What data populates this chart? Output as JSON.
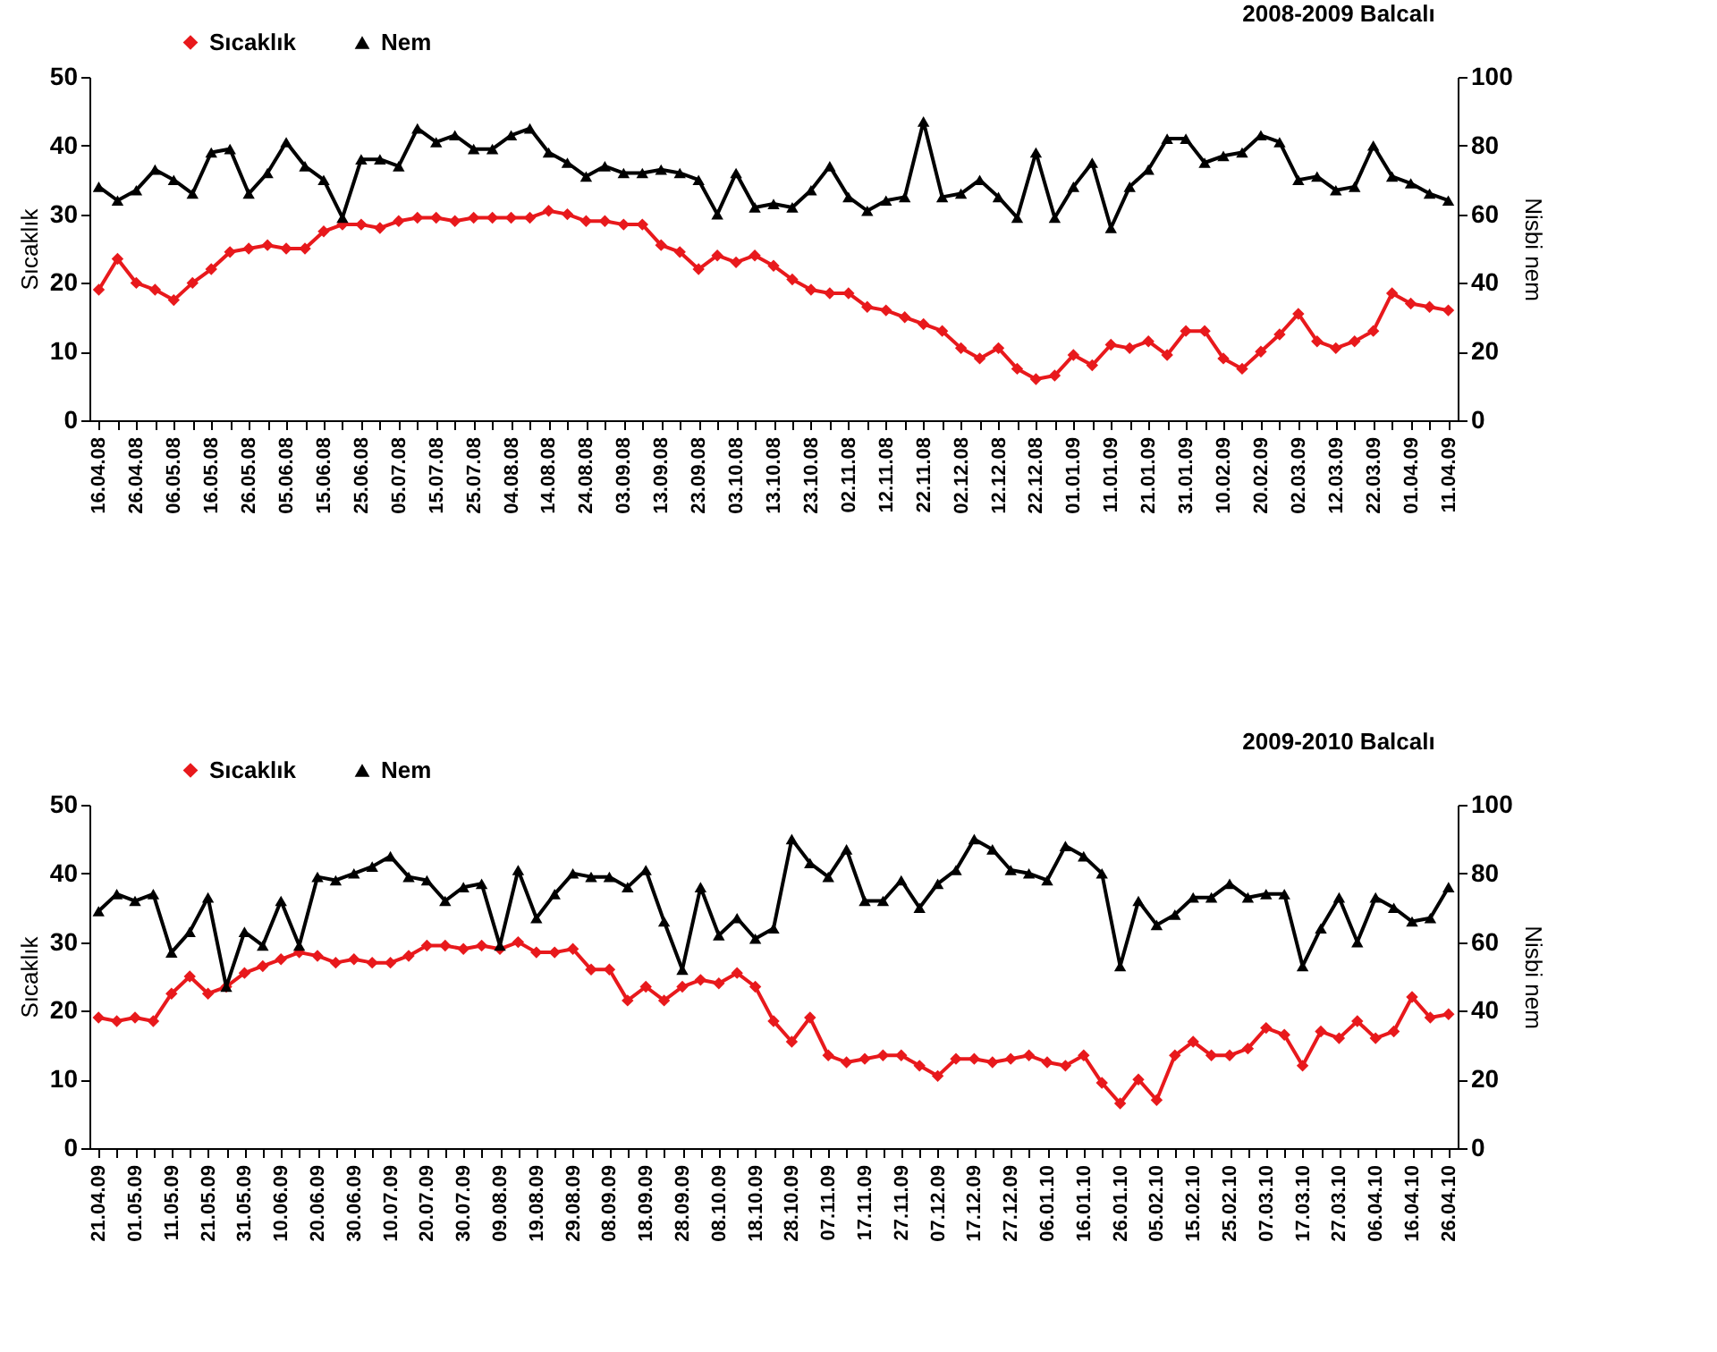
{
  "chart_data": [
    {
      "type": "line",
      "title": "2008-2009 Balcalı",
      "ylabel": "Sıcaklık",
      "y2label": "Nisbi nem",
      "legend": "top left",
      "grid": false,
      "categories": [
        "16.04.08",
        null,
        "26.04.08",
        null,
        "06.05.08",
        null,
        "16.05.08",
        null,
        "26.05.08",
        null,
        "05.06.08",
        null,
        "15.06.08",
        null,
        "25.06.08",
        null,
        "05.07.08",
        null,
        "15.07.08",
        null,
        "25.07.08",
        null,
        "04.08.08",
        null,
        "14.08.08",
        null,
        "24.08.08",
        null,
        "03.09.08",
        null,
        "13.09.08",
        null,
        "23.09.08",
        null,
        "03.10.08",
        null,
        "13.10.08",
        null,
        "23.10.08",
        null,
        "02.11.08",
        null,
        "12.11.08",
        null,
        "22.11.08",
        null,
        "02.12.08",
        null,
        "12.12.08",
        null,
        "22.12.08",
        null,
        "01.01.09",
        null,
        "11.01.09",
        null,
        "21.01.09",
        null,
        "31.01.09",
        null,
        "10.02.09",
        null,
        "20.02.09",
        null,
        "02.03.09",
        null,
        "12.03.09",
        null,
        "22.03.09",
        null,
        "01.04.09",
        null,
        "11.04.09"
      ],
      "ylim": [
        0,
        50
      ],
      "yticks": [
        0,
        10,
        20,
        30,
        40,
        50
      ],
      "y2lim": [
        0,
        100
      ],
      "y2ticks": [
        0,
        20,
        40,
        60,
        80,
        100
      ],
      "series": [
        {
          "name": "Sıcaklık",
          "color": "#e8191c",
          "marker": "diamond",
          "values": [
            19,
            23.5,
            20,
            19,
            17.5,
            20,
            22,
            24.5,
            25,
            25.5,
            25,
            25,
            27.5,
            28.5,
            28.5,
            28,
            29,
            29.5,
            29.5,
            29,
            29.5,
            29.5,
            29.5,
            29.5,
            30.5,
            30,
            29,
            29,
            28.5,
            28.5,
            25.5,
            24.5,
            22,
            24,
            23,
            24,
            22.5,
            20.5,
            19,
            18.5,
            18.5,
            16.5,
            16,
            15,
            14,
            13,
            10.5,
            9,
            10.5,
            7.5,
            6,
            6.5,
            9.5,
            8,
            11,
            10.5,
            11.5,
            9.5,
            13,
            13,
            9,
            7.5,
            10,
            12.5,
            15.5,
            11.5,
            10.5,
            11.5,
            13,
            18.5,
            17,
            16.5,
            16
          ]
        },
        {
          "name": "Nem",
          "color": "#000000",
          "marker": "triangle",
          "axis": "y2",
          "values": [
            68,
            64,
            67,
            73,
            70,
            66,
            78,
            79,
            66,
            72,
            81,
            74,
            70,
            59,
            76,
            76,
            74,
            85,
            81,
            83,
            79,
            79,
            83,
            85,
            78,
            75,
            71,
            74,
            72,
            72,
            73,
            72,
            70,
            60,
            72,
            62,
            63,
            62,
            67,
            74,
            65,
            61,
            64,
            65,
            87,
            65,
            66,
            70,
            65,
            59,
            78,
            59,
            68,
            75,
            56,
            68,
            73,
            82,
            82,
            75,
            77,
            78,
            83,
            81,
            70,
            71,
            67,
            68,
            80,
            71,
            69,
            66,
            64
          ]
        }
      ]
    },
    {
      "type": "line",
      "title": "2009-2010 Balcalı",
      "ylabel": "Sıcaklık",
      "y2label": "Nisbi nem",
      "legend": "top left",
      "grid": false,
      "categories": [
        "21.04.09",
        null,
        "01.05.09",
        null,
        "11.05.09",
        null,
        "21.05.09",
        null,
        "31.05.09",
        null,
        "10.06.09",
        null,
        "20.06.09",
        null,
        "30.06.09",
        null,
        "10.07.09",
        null,
        "20.07.09",
        null,
        "30.07.09",
        null,
        "09.08.09",
        null,
        "19.08.09",
        null,
        "29.08.09",
        null,
        "08.09.09",
        null,
        "18.09.09",
        null,
        "28.09.09",
        null,
        "08.10.09",
        null,
        "18.10.09",
        null,
        "28.10.09",
        null,
        "07.11.09",
        null,
        "17.11.09",
        null,
        "27.11.09",
        null,
        "07.12.09",
        null,
        "17.12.09",
        null,
        "27.12.09",
        null,
        "06.01.10",
        null,
        "16.01.10",
        null,
        "26.01.10",
        null,
        "05.02.10",
        null,
        "15.02.10",
        null,
        "25.02.10",
        null,
        "07.03.10",
        null,
        "17.03.10",
        null,
        "27.03.10",
        null,
        "06.04.10",
        null,
        "16.04.10",
        null,
        "26.04.10"
      ],
      "ylim": [
        0,
        50
      ],
      "yticks": [
        0,
        10,
        20,
        30,
        40,
        50
      ],
      "y2lim": [
        0,
        100
      ],
      "y2ticks": [
        0,
        20,
        40,
        60,
        80,
        100
      ],
      "series": [
        {
          "name": "Sıcaklık",
          "color": "#e8191c",
          "marker": "diamond",
          "values": [
            19,
            18.5,
            19,
            18.5,
            22.5,
            25,
            22.5,
            23.5,
            25.5,
            26.5,
            27.5,
            28.5,
            28,
            27,
            27.5,
            27,
            27,
            28,
            29.5,
            29.5,
            29,
            29.5,
            29,
            30,
            28.5,
            28.5,
            29,
            26,
            26,
            21.5,
            23.5,
            21.5,
            23.5,
            24.5,
            24,
            25.5,
            23.5,
            18.5,
            15.5,
            19,
            13.5,
            12.5,
            13,
            13.5,
            13.5,
            12,
            10.5,
            13,
            13,
            12.5,
            13,
            13.5,
            12.5,
            12,
            13.5,
            9.5,
            6.5,
            10,
            7,
            13.5,
            15.5,
            13.5,
            13.5,
            14.5,
            17.5,
            16.5,
            12,
            17,
            16,
            18.5,
            16,
            17,
            22,
            19,
            19.5
          ]
        },
        {
          "name": "Nem",
          "color": "#000000",
          "marker": "triangle",
          "axis": "y2",
          "values": [
            69,
            74,
            72,
            74,
            57,
            63,
            73,
            47,
            63,
            59,
            72,
            59,
            79,
            78,
            80,
            82,
            85,
            79,
            78,
            72,
            76,
            77,
            59,
            81,
            67,
            74,
            80,
            79,
            79,
            76,
            81,
            66,
            52,
            76,
            62,
            67,
            61,
            64,
            90,
            83,
            79,
            87,
            72,
            72,
            78,
            70,
            77,
            81,
            90,
            87,
            81,
            80,
            78,
            88,
            85,
            80,
            53,
            72,
            65,
            68,
            73,
            73,
            77,
            73,
            74,
            74,
            53,
            64,
            73,
            60,
            73,
            70,
            66,
            67,
            76
          ]
        }
      ]
    }
  ]
}
